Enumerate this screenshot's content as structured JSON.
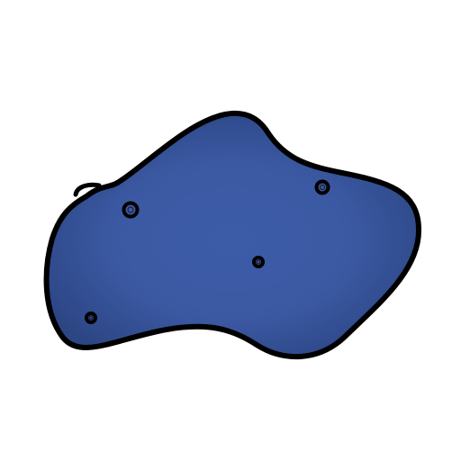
{
  "shape": {
    "kind": "blob",
    "fill_center": "#3d5ca8",
    "fill_edge": "#2c4583",
    "outline": "#000000",
    "hole_count": 4
  }
}
